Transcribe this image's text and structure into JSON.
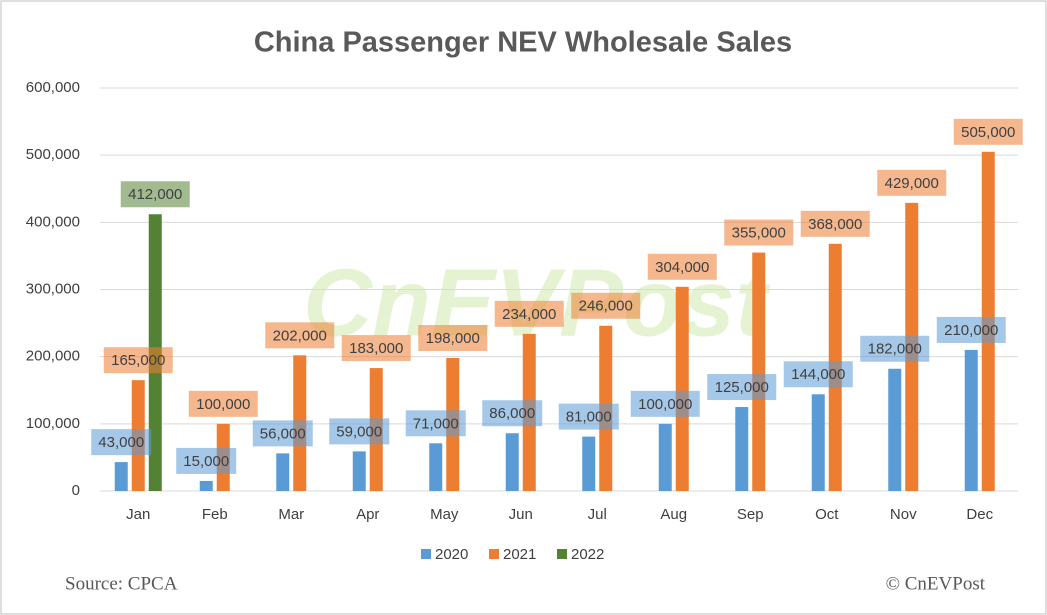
{
  "chart_data": {
    "type": "bar",
    "title": "China Passenger NEV Wholesale Sales",
    "categories": [
      "Jan",
      "Feb",
      "Mar",
      "Apr",
      "May",
      "Jun",
      "Jul",
      "Aug",
      "Sep",
      "Oct",
      "Nov",
      "Dec"
    ],
    "series": [
      {
        "name": "2020",
        "color": "#5b9bd5",
        "values": [
          43000,
          15000,
          56000,
          59000,
          71000,
          86000,
          81000,
          100000,
          125000,
          144000,
          182000,
          210000
        ],
        "value_labels": [
          "43,000",
          "15,000",
          "56,000",
          "59,000",
          "71,000",
          "86,000",
          "81,000",
          "100,000",
          "125,000",
          "144,000",
          "182,000",
          "210,000"
        ]
      },
      {
        "name": "2021",
        "color": "#ed7d31",
        "values": [
          165000,
          100000,
          202000,
          183000,
          198000,
          234000,
          246000,
          304000,
          355000,
          368000,
          429000,
          505000
        ],
        "value_labels": [
          "165,000",
          "100,000",
          "202,000",
          "183,000",
          "198,000",
          "234,000",
          "246,000",
          "304,000",
          "355,000",
          "368,000",
          "429,000",
          "505,000"
        ]
      },
      {
        "name": "2022",
        "color": "#548235",
        "values": [
          412000,
          null,
          null,
          null,
          null,
          null,
          null,
          null,
          null,
          null,
          null,
          null
        ],
        "value_labels": [
          "412,000",
          null,
          null,
          null,
          null,
          null,
          null,
          null,
          null,
          null,
          null,
          null
        ]
      }
    ],
    "ylim": [
      0,
      600000
    ],
    "yticks": [
      0,
      {
        "value": 100000,
        "label": "100,000"
      },
      {
        "value": 200000,
        "label": "200,000"
      },
      {
        "value": 300000,
        "label": "300,000"
      },
      {
        "value": 400000,
        "label": "400,000"
      },
      {
        "value": 500000,
        "label": "500,000"
      },
      {
        "value": 600000,
        "label": "600,000"
      }
    ],
    "grid": true,
    "legend": "bottom",
    "source": "Source: CPCA",
    "credit": "© CnEVPost",
    "watermark": "CnEVPost"
  }
}
